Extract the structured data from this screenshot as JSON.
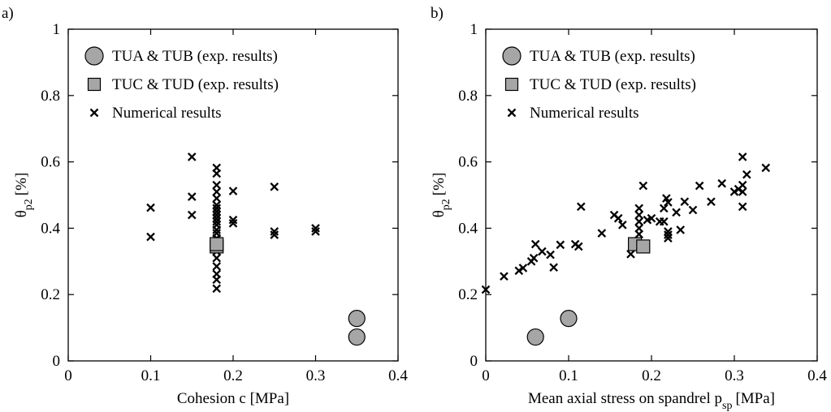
{
  "chart_data": [
    {
      "panel": "a)",
      "type": "scatter",
      "xlabel": "Cohesion c [MPa]",
      "ylabel_symbol": "θ",
      "ylabel_sub": "p2",
      "ylabel_unit": "[%]",
      "xlim": [
        0,
        0.4
      ],
      "ylim": [
        0,
        1
      ],
      "xticks": [
        0,
        0.1,
        0.2,
        0.3,
        0.4
      ],
      "xtick_labels": [
        "0",
        "0.1",
        "0.2",
        "0.3",
        "0.4"
      ],
      "yticks": [
        0,
        0.2,
        0.4,
        0.6,
        0.8,
        1
      ],
      "ytick_labels": [
        "0",
        "0.2",
        "0.4",
        "0.6",
        "0.8",
        "1"
      ],
      "legend_position": "top-left",
      "series": [
        {
          "name": "TUA & TUB (exp. results)",
          "marker": "circle",
          "color": "#a6a6a6",
          "points": [
            [
              0.35,
              0.128
            ],
            [
              0.35,
              0.072
            ]
          ]
        },
        {
          "name": "TUC & TUD (exp. results)",
          "marker": "square",
          "color": "#a6a6a6",
          "points": [
            [
              0.18,
              0.345
            ],
            [
              0.18,
              0.352
            ]
          ]
        },
        {
          "name": "Numerical results",
          "marker": "x",
          "color": "#000000",
          "points": [
            [
              0.1,
              0.462
            ],
            [
              0.1,
              0.374
            ],
            [
              0.15,
              0.615
            ],
            [
              0.15,
              0.495
            ],
            [
              0.15,
              0.44
            ],
            [
              0.18,
              0.582
            ],
            [
              0.18,
              0.565
            ],
            [
              0.18,
              0.53
            ],
            [
              0.18,
              0.51
            ],
            [
              0.18,
              0.49
            ],
            [
              0.18,
              0.47
            ],
            [
              0.18,
              0.46
            ],
            [
              0.18,
              0.45
            ],
            [
              0.18,
              0.44
            ],
            [
              0.18,
              0.43
            ],
            [
              0.18,
              0.42
            ],
            [
              0.18,
              0.41
            ],
            [
              0.18,
              0.395
            ],
            [
              0.18,
              0.385
            ],
            [
              0.18,
              0.37
            ],
            [
              0.18,
              0.33
            ],
            [
              0.18,
              0.31
            ],
            [
              0.18,
              0.285
            ],
            [
              0.18,
              0.262
            ],
            [
              0.18,
              0.245
            ],
            [
              0.18,
              0.218
            ],
            [
              0.2,
              0.512
            ],
            [
              0.2,
              0.425
            ],
            [
              0.2,
              0.415
            ],
            [
              0.25,
              0.525
            ],
            [
              0.25,
              0.39
            ],
            [
              0.25,
              0.38
            ],
            [
              0.3,
              0.4
            ],
            [
              0.3,
              0.39
            ]
          ]
        }
      ]
    },
    {
      "panel": "b)",
      "type": "scatter",
      "xlabel": "Mean axial stress on spandrel p",
      "xlabel_sub": "sp",
      "xlabel_unit": "[MPa]",
      "ylabel_symbol": "θ",
      "ylabel_sub": "p2",
      "ylabel_unit": "[%]",
      "xlim": [
        0,
        0.4
      ],
      "ylim": [
        0,
        1
      ],
      "xticks": [
        0,
        0.1,
        0.2,
        0.3,
        0.4
      ],
      "xtick_labels": [
        "0",
        "0.1",
        "0.2",
        "0.3",
        "0.4"
      ],
      "yticks": [
        0,
        0.2,
        0.4,
        0.6,
        0.8,
        1
      ],
      "ytick_labels": [
        "0",
        "0.2",
        "0.4",
        "0.6",
        "0.8",
        "1"
      ],
      "legend_position": "top-left",
      "series": [
        {
          "name": "TUA & TUB (exp. results)",
          "marker": "circle",
          "color": "#a6a6a6",
          "points": [
            [
              0.06,
              0.072
            ],
            [
              0.1,
              0.128
            ]
          ]
        },
        {
          "name": "TUC & TUD (exp. results)",
          "marker": "square",
          "color": "#a6a6a6",
          "points": [
            [
              0.18,
              0.352
            ],
            [
              0.19,
              0.345
            ]
          ]
        },
        {
          "name": "Numerical results",
          "marker": "x",
          "color": "#000000",
          "points": [
            [
              0.0,
              0.215
            ],
            [
              0.022,
              0.255
            ],
            [
              0.04,
              0.272
            ],
            [
              0.045,
              0.28
            ],
            [
              0.055,
              0.3
            ],
            [
              0.058,
              0.31
            ],
            [
              0.06,
              0.352
            ],
            [
              0.068,
              0.33
            ],
            [
              0.078,
              0.32
            ],
            [
              0.082,
              0.282
            ],
            [
              0.09,
              0.35
            ],
            [
              0.108,
              0.352
            ],
            [
              0.112,
              0.345
            ],
            [
              0.115,
              0.465
            ],
            [
              0.14,
              0.385
            ],
            [
              0.155,
              0.44
            ],
            [
              0.16,
              0.43
            ],
            [
              0.165,
              0.41
            ],
            [
              0.175,
              0.322
            ],
            [
              0.185,
              0.46
            ],
            [
              0.185,
              0.44
            ],
            [
              0.185,
              0.42
            ],
            [
              0.185,
              0.4
            ],
            [
              0.185,
              0.382
            ],
            [
              0.19,
              0.528
            ],
            [
              0.195,
              0.425
            ],
            [
              0.2,
              0.43
            ],
            [
              0.21,
              0.42
            ],
            [
              0.215,
              0.46
            ],
            [
              0.215,
              0.42
            ],
            [
              0.218,
              0.49
            ],
            [
              0.22,
              0.478
            ],
            [
              0.22,
              0.39
            ],
            [
              0.22,
              0.38
            ],
            [
              0.22,
              0.37
            ],
            [
              0.23,
              0.448
            ],
            [
              0.235,
              0.395
            ],
            [
              0.24,
              0.48
            ],
            [
              0.25,
              0.455
            ],
            [
              0.258,
              0.528
            ],
            [
              0.272,
              0.48
            ],
            [
              0.285,
              0.535
            ],
            [
              0.3,
              0.51
            ],
            [
              0.305,
              0.518
            ],
            [
              0.31,
              0.615
            ],
            [
              0.31,
              0.53
            ],
            [
              0.31,
              0.51
            ],
            [
              0.31,
              0.465
            ],
            [
              0.315,
              0.562
            ],
            [
              0.338,
              0.582
            ]
          ]
        }
      ]
    }
  ]
}
